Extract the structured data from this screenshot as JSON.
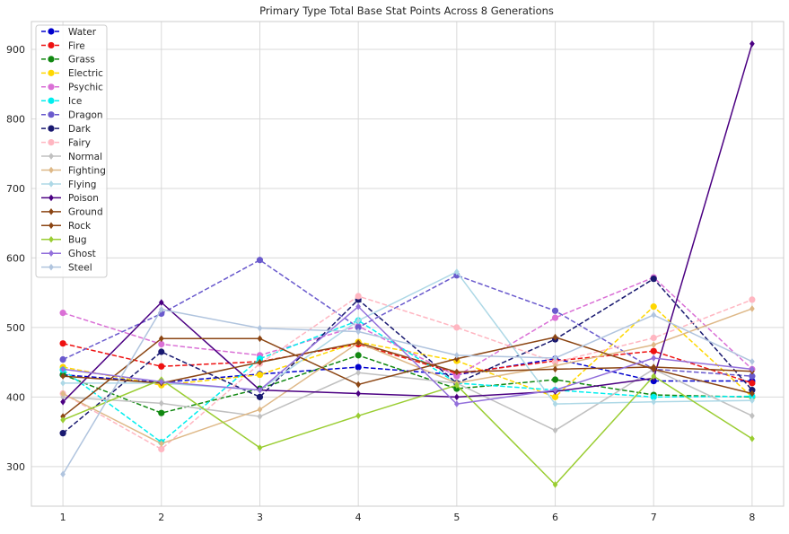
{
  "chart_data": {
    "type": "line",
    "title": "Primary Type Total Base Stat Points Across 8 Generations",
    "xlabel": "",
    "ylabel": "",
    "x": [
      1,
      2,
      3,
      4,
      5,
      6,
      7,
      8
    ],
    "xlim": [
      0.68,
      8.32
    ],
    "ylim": [
      243,
      940
    ],
    "yticks": [
      300,
      400,
      500,
      600,
      700,
      800,
      900
    ],
    "grid": true,
    "legend_position": "top-left",
    "series": [
      {
        "name": "Water",
        "color": "#0000cd",
        "style": "dashed",
        "marker": "circle",
        "values": [
          432,
          421,
          433,
          443,
          432,
          455,
          423,
          423
        ]
      },
      {
        "name": "Fire",
        "color": "#ee1111",
        "style": "dashed",
        "marker": "circle",
        "values": [
          477,
          444,
          451,
          476,
          434,
          452,
          466,
          420
        ]
      },
      {
        "name": "Grass",
        "color": "#118811",
        "style": "dashed",
        "marker": "circle",
        "values": [
          432,
          377,
          412,
          460,
          412,
          425,
          403,
          400
        ]
      },
      {
        "name": "Electric",
        "color": "#ffd700",
        "style": "dashed",
        "marker": "circle",
        "values": [
          443,
          417,
          432,
          479,
          452,
          400,
          530,
          400
        ]
      },
      {
        "name": "Psychic",
        "color": "#da70d6",
        "style": "dashed",
        "marker": "circle",
        "values": [
          521,
          476,
          460,
          502,
          430,
          514,
          572,
          440
        ]
      },
      {
        "name": "Ice",
        "color": "#00eeee",
        "style": "dashed",
        "marker": "circle",
        "values": [
          439,
          335,
          455,
          510,
          420,
          410,
          400,
          401
        ]
      },
      {
        "name": "Dragon",
        "color": "#6a5acd",
        "style": "dashed",
        "marker": "circle",
        "values": [
          454,
          520,
          597,
          500,
          575,
          524,
          440,
          430
        ]
      },
      {
        "name": "Dark",
        "color": "#191970",
        "style": "dashed",
        "marker": "circle",
        "values": [
          348,
          465,
          400,
          540,
          420,
          483,
          570,
          410
        ]
      },
      {
        "name": "Fairy",
        "color": "#ffb6c1",
        "style": "dashed",
        "marker": "circle",
        "values": [
          405,
          325,
          448,
          545,
          500,
          450,
          485,
          540
        ]
      },
      {
        "name": "Normal",
        "color": "#c0c0c0",
        "style": "solid",
        "marker": "diamond",
        "values": [
          400,
          391,
          372,
          435,
          420,
          352,
          440,
          373
        ]
      },
      {
        "name": "Fighting",
        "color": "#deb887",
        "style": "solid",
        "marker": "diamond",
        "values": [
          405,
          333,
          382,
          478,
          420,
          445,
          475,
          527
        ]
      },
      {
        "name": "Flying",
        "color": "#add8e6",
        "style": "solid",
        "marker": "diamond",
        "values": [
          420,
          420,
          410,
          510,
          580,
          390,
          393,
          395
        ]
      },
      {
        "name": "Poison",
        "color": "#4b0082",
        "style": "solid",
        "marker": "diamond",
        "values": [
          393,
          536,
          410,
          405,
          400,
          408,
          427,
          908
        ]
      },
      {
        "name": "Ground",
        "color": "#8b4513",
        "style": "solid",
        "marker": "diamond",
        "values": [
          430,
          420,
          450,
          478,
          436,
          440,
          443,
          437
        ]
      },
      {
        "name": "Rock",
        "color": "#8b4513",
        "style": "solid",
        "marker": "diamond",
        "values": [
          372,
          484,
          484,
          418,
          455,
          486,
          440,
          405
        ]
      },
      {
        "name": "Bug",
        "color": "#9acd32",
        "style": "solid",
        "marker": "diamond",
        "values": [
          367,
          425,
          327,
          373,
          417,
          274,
          430,
          340
        ]
      },
      {
        "name": "Ghost",
        "color": "#9370db",
        "style": "solid",
        "marker": "diamond",
        "values": [
          440,
          422,
          410,
          530,
          390,
          410,
          456,
          440
        ]
      },
      {
        "name": "Steel",
        "color": "#b0c4de",
        "style": "solid",
        "marker": "diamond",
        "values": [
          289,
          526,
          499,
          494,
          460,
          456,
          518,
          451
        ]
      }
    ]
  }
}
